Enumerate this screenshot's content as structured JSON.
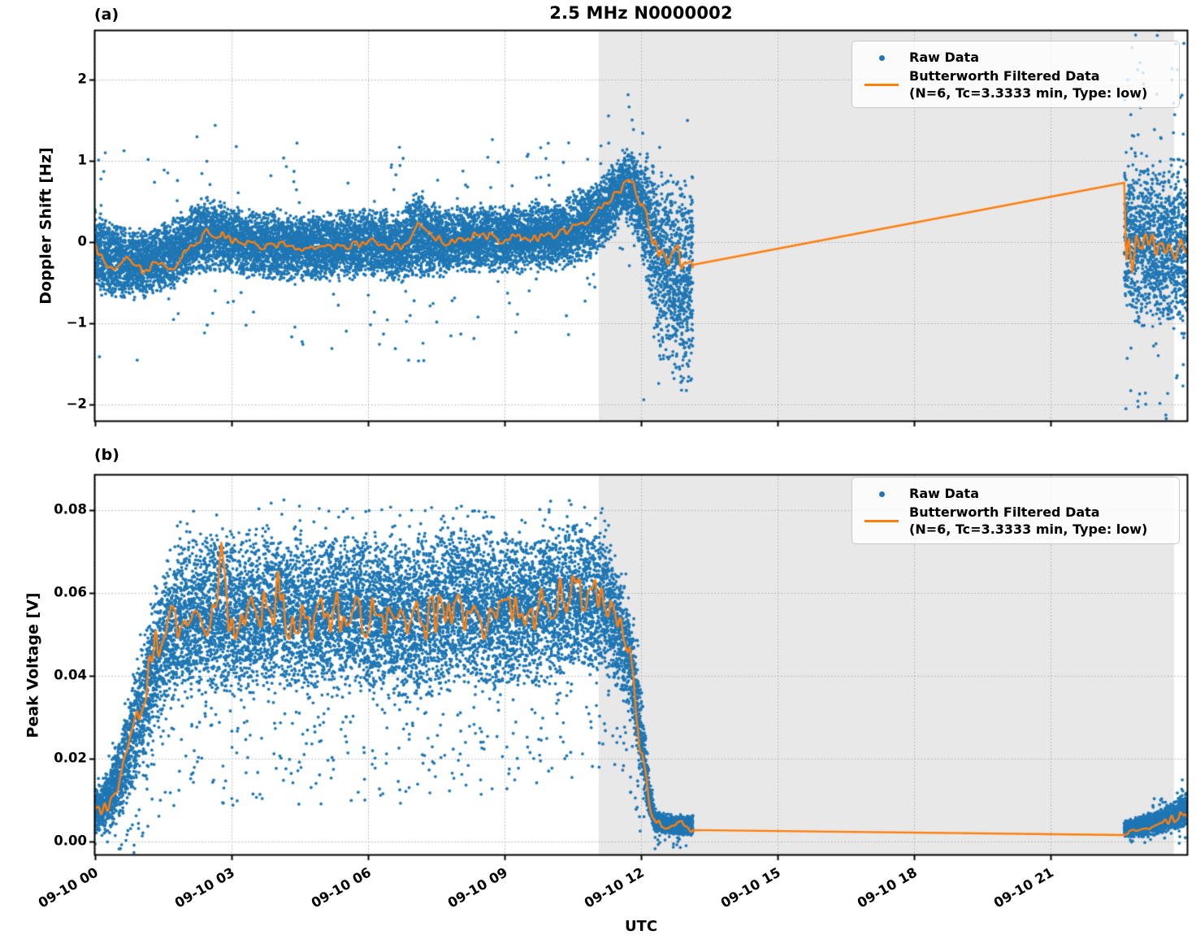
{
  "title": "2.5 MHz N0000002",
  "panel_a_label": "(a)",
  "panel_b_label": "(b)",
  "xlabel": "UTC",
  "legend": {
    "raw": "Raw Data",
    "filtered": "Butterworth Filtered Data",
    "filtered_params": "(N=6, Tc=3.3333 min, Type: low)"
  },
  "colors": {
    "raw": "#1f77b4",
    "filtered": "#ff7f0e",
    "shade": "#e8e8e8",
    "grid": "#ababab",
    "spine": "#000000"
  },
  "x_ticks": [
    {
      "t": 0,
      "label": "09-10 00"
    },
    {
      "t": 3,
      "label": "09-10 03"
    },
    {
      "t": 6,
      "label": "09-10 06"
    },
    {
      "t": 9,
      "label": "09-10 09"
    },
    {
      "t": 12,
      "label": "09-10 12"
    },
    {
      "t": 15,
      "label": "09-10 15"
    },
    {
      "t": 18,
      "label": "09-10 18"
    },
    {
      "t": 21,
      "label": "09-10 21"
    }
  ],
  "shade_span_hours": {
    "t0": 11.07,
    "t1": 23.71
  },
  "data_gap_hours": {
    "t0": 13.14,
    "t1": 22.62
  },
  "chart_data": [
    {
      "type": "scatter",
      "panel": "a",
      "ylabel": "Doppler Shift [Hz]",
      "xlim_hours": [
        0,
        24
      ],
      "ylim": [
        -2.2,
        2.6
      ],
      "yticks": [
        {
          "v": 2,
          "label": "2"
        },
        {
          "v": 1,
          "label": "1"
        },
        {
          "v": 0,
          "label": "0"
        },
        {
          "v": -1,
          "label": "−1"
        },
        {
          "v": -2,
          "label": "−2"
        }
      ],
      "raw": {
        "name": "Raw Data",
        "segments": [
          {
            "t0": 0,
            "t1": 13.14,
            "pph": 950,
            "outlier_prob": 0.012,
            "scale_up": 2.0,
            "scale_down": 2.0,
            "low_frac": 0.5
          },
          {
            "t0": 22.62,
            "t1": 24,
            "pph": 950,
            "outlier_prob": 0.06,
            "scale_up": 1.8,
            "scale_down": 1.8,
            "low_frac": 0.5
          }
        ],
        "envelope": [
          [
            0,
            -0.08,
            0.52
          ],
          [
            0.3,
            -0.2,
            0.5
          ],
          [
            0.8,
            -0.28,
            0.46
          ],
          [
            1.3,
            -0.24,
            0.44
          ],
          [
            1.8,
            -0.1,
            0.44
          ],
          [
            2.2,
            0.05,
            0.46
          ],
          [
            2.6,
            0.1,
            0.46
          ],
          [
            3.0,
            0.03,
            0.42
          ],
          [
            3.6,
            -0.03,
            0.42
          ],
          [
            4.2,
            -0.05,
            0.43
          ],
          [
            5.0,
            -0.06,
            0.43
          ],
          [
            5.6,
            -0.02,
            0.43
          ],
          [
            6.2,
            -0.02,
            0.43
          ],
          [
            6.7,
            -0.07,
            0.46
          ],
          [
            7.1,
            0.12,
            0.55
          ],
          [
            7.45,
            0.02,
            0.46
          ],
          [
            8.0,
            0.02,
            0.42
          ],
          [
            8.6,
            0.05,
            0.42
          ],
          [
            9.2,
            0.03,
            0.43
          ],
          [
            9.8,
            0.07,
            0.43
          ],
          [
            10.4,
            0.13,
            0.46
          ],
          [
            10.9,
            0.26,
            0.46
          ],
          [
            11.3,
            0.46,
            0.46
          ],
          [
            11.65,
            0.7,
            0.45
          ],
          [
            11.95,
            0.52,
            0.62
          ],
          [
            12.15,
            0.2,
            0.9
          ],
          [
            12.4,
            -0.25,
            1.15
          ],
          [
            12.7,
            -0.45,
            1.3
          ],
          [
            13.0,
            -0.52,
            1.35
          ],
          [
            13.14,
            -0.45,
            1.3
          ],
          [
            22.62,
            0.12,
            1.05
          ],
          [
            22.9,
            0.02,
            1.05
          ],
          [
            23.2,
            -0.02,
            1.0
          ],
          [
            23.5,
            -0.05,
            1.0
          ],
          [
            23.8,
            0.0,
            1.1
          ],
          [
            24,
            -0.05,
            1.1
          ]
        ]
      },
      "filtered": {
        "name": "Butterworth Filtered Data (N=6, Tc=3.3333 min, Type: low)",
        "noise_factor": 0.12,
        "segments": [
          {
            "noisy": true,
            "keys": [
              [
                0,
                -0.08
              ],
              [
                0.35,
                -0.3
              ],
              [
                0.7,
                -0.22
              ],
              [
                1.05,
                -0.35
              ],
              [
                1.4,
                -0.26
              ],
              [
                1.75,
                -0.3
              ],
              [
                2.1,
                -0.06
              ],
              [
                2.45,
                0.12
              ],
              [
                2.8,
                0.07
              ],
              [
                3.2,
                0.0
              ],
              [
                3.7,
                -0.05
              ],
              [
                4.2,
                -0.02
              ],
              [
                4.7,
                -0.08
              ],
              [
                5.2,
                -0.05
              ],
              [
                5.7,
                -0.03
              ],
              [
                6.1,
                0.02
              ],
              [
                6.5,
                -0.09
              ],
              [
                6.9,
                0.0
              ],
              [
                7.1,
                0.26
              ],
              [
                7.3,
                0.1
              ],
              [
                7.7,
                0.0
              ],
              [
                8.1,
                0.05
              ],
              [
                8.5,
                0.1
              ],
              [
                8.9,
                0.03
              ],
              [
                9.3,
                0.06
              ],
              [
                9.7,
                0.03
              ],
              [
                10.1,
                0.1
              ],
              [
                10.5,
                0.16
              ],
              [
                10.9,
                0.3
              ],
              [
                11.2,
                0.46
              ],
              [
                11.5,
                0.62
              ],
              [
                11.75,
                0.78
              ],
              [
                11.95,
                0.55
              ],
              [
                12.15,
                0.25
              ],
              [
                12.35,
                -0.05
              ],
              [
                12.55,
                -0.22
              ],
              [
                12.75,
                -0.12
              ],
              [
                12.95,
                -0.35
              ],
              [
                13.14,
                -0.28
              ]
            ]
          },
          {
            "noisy": false,
            "keys": [
              [
                13.14,
                -0.28
              ],
              [
                22.62,
                0.73
              ]
            ]
          },
          {
            "noisy": true,
            "keys": [
              [
                22.62,
                0.73
              ],
              [
                22.66,
                -0.2
              ],
              [
                22.72,
                0.15
              ],
              [
                22.8,
                -0.32
              ],
              [
                22.88,
                0.05
              ],
              [
                22.96,
                -0.18
              ],
              [
                23.05,
                0.1
              ],
              [
                23.15,
                -0.12
              ],
              [
                23.25,
                0.0
              ],
              [
                23.35,
                -0.16
              ],
              [
                23.45,
                -0.05
              ],
              [
                23.55,
                -0.13
              ],
              [
                23.65,
                -0.03
              ],
              [
                23.75,
                -0.16
              ],
              [
                23.85,
                -0.08
              ],
              [
                23.95,
                -0.13
              ],
              [
                24,
                -0.1
              ]
            ]
          }
        ]
      }
    },
    {
      "type": "scatter",
      "panel": "b",
      "ylabel": "Peak Voltage [V]",
      "xlim_hours": [
        0,
        24
      ],
      "ylim": [
        -0.0031,
        0.0884
      ],
      "yticks": [
        {
          "v": 0.08,
          "label": "0.08"
        },
        {
          "v": 0.06,
          "label": "0.06"
        },
        {
          "v": 0.04,
          "label": "0.04"
        },
        {
          "v": 0.02,
          "label": "0.02"
        },
        {
          "v": 0.0,
          "label": "0.00"
        }
      ],
      "raw": {
        "name": "Raw Data",
        "segments": [
          {
            "t0": 0,
            "t1": 13.14,
            "pph": 950,
            "outlier_prob": 0.035,
            "scale_up": 0.35,
            "scale_down": 1.3,
            "low_frac": 0.78
          },
          {
            "t0": 22.62,
            "t1": 24,
            "pph": 950,
            "outlier_prob": 0.02,
            "scale_up": 1.0,
            "scale_down": 1.0,
            "low_frac": 0.5
          }
        ],
        "envelope": [
          [
            0,
            0.007,
            0.006
          ],
          [
            0.3,
            0.01,
            0.008
          ],
          [
            0.6,
            0.017,
            0.011
          ],
          [
            0.9,
            0.028,
            0.014
          ],
          [
            1.2,
            0.039,
            0.016
          ],
          [
            1.5,
            0.048,
            0.018
          ],
          [
            1.9,
            0.053,
            0.019
          ],
          [
            2.5,
            0.056,
            0.02
          ],
          [
            3.2,
            0.054,
            0.02
          ],
          [
            4.0,
            0.056,
            0.02
          ],
          [
            4.8,
            0.054,
            0.02
          ],
          [
            5.6,
            0.056,
            0.02
          ],
          [
            6.4,
            0.054,
            0.02
          ],
          [
            7.2,
            0.054,
            0.02
          ],
          [
            8.0,
            0.057,
            0.019
          ],
          [
            8.8,
            0.055,
            0.02
          ],
          [
            9.6,
            0.056,
            0.019
          ],
          [
            10.3,
            0.058,
            0.019
          ],
          [
            10.8,
            0.059,
            0.018
          ],
          [
            11.2,
            0.057,
            0.017
          ],
          [
            11.5,
            0.052,
            0.016
          ],
          [
            11.8,
            0.041,
            0.014
          ],
          [
            12.0,
            0.026,
            0.011
          ],
          [
            12.15,
            0.013,
            0.006
          ],
          [
            12.3,
            0.005,
            0.003
          ],
          [
            12.6,
            0.0038,
            0.0022
          ],
          [
            13.14,
            0.004,
            0.0026
          ],
          [
            22.62,
            0.003,
            0.002
          ],
          [
            23.0,
            0.0038,
            0.0026
          ],
          [
            23.4,
            0.005,
            0.003
          ],
          [
            23.7,
            0.006,
            0.0035
          ],
          [
            24,
            0.008,
            0.005
          ]
        ]
      },
      "filtered": {
        "name": "Butterworth Filtered Data (N=6, Tc=3.3333 min, Type: low)",
        "noise_factor": 0.3,
        "segments": [
          {
            "noisy": true,
            "keys": [
              [
                0,
                0.007
              ],
              [
                0.25,
                0.009
              ],
              [
                0.5,
                0.014
              ],
              [
                0.75,
                0.022
              ],
              [
                1.0,
                0.034
              ],
              [
                1.25,
                0.044
              ],
              [
                1.5,
                0.05
              ],
              [
                1.8,
                0.054
              ],
              [
                2.1,
                0.057
              ],
              [
                2.5,
                0.054
              ],
              [
                2.7,
                0.056
              ],
              [
                2.78,
                0.069
              ],
              [
                2.88,
                0.056
              ],
              [
                3.2,
                0.053
              ],
              [
                3.6,
                0.056
              ],
              [
                3.95,
                0.056
              ],
              [
                4.03,
                0.067
              ],
              [
                4.12,
                0.054
              ],
              [
                4.5,
                0.056
              ],
              [
                5.0,
                0.053
              ],
              [
                5.5,
                0.057
              ],
              [
                6.0,
                0.054
              ],
              [
                6.5,
                0.056
              ],
              [
                7.0,
                0.052
              ],
              [
                7.5,
                0.056
              ],
              [
                8.0,
                0.057
              ],
              [
                8.5,
                0.054
              ],
              [
                9.0,
                0.056
              ],
              [
                9.5,
                0.054
              ],
              [
                10.0,
                0.057
              ],
              [
                10.4,
                0.061
              ],
              [
                10.8,
                0.058
              ],
              [
                11.1,
                0.061
              ],
              [
                11.35,
                0.057
              ],
              [
                11.55,
                0.05
              ],
              [
                11.75,
                0.044
              ],
              [
                11.9,
                0.032
              ],
              [
                12.05,
                0.018
              ],
              [
                12.2,
                0.008
              ],
              [
                12.35,
                0.0045
              ],
              [
                12.6,
                0.003
              ],
              [
                12.9,
                0.0045
              ],
              [
                13.14,
                0.0028
              ]
            ]
          },
          {
            "noisy": false,
            "keys": [
              [
                13.14,
                0.0028
              ],
              [
                22.62,
                0.0016
              ]
            ]
          },
          {
            "noisy": true,
            "keys": [
              [
                22.62,
                0.0016
              ],
              [
                22.9,
                0.003
              ],
              [
                23.2,
                0.0035
              ],
              [
                23.5,
                0.0045
              ],
              [
                23.7,
                0.0055
              ],
              [
                23.85,
                0.007
              ],
              [
                23.93,
                0.005
              ],
              [
                24,
                0.006
              ]
            ]
          }
        ]
      }
    }
  ]
}
